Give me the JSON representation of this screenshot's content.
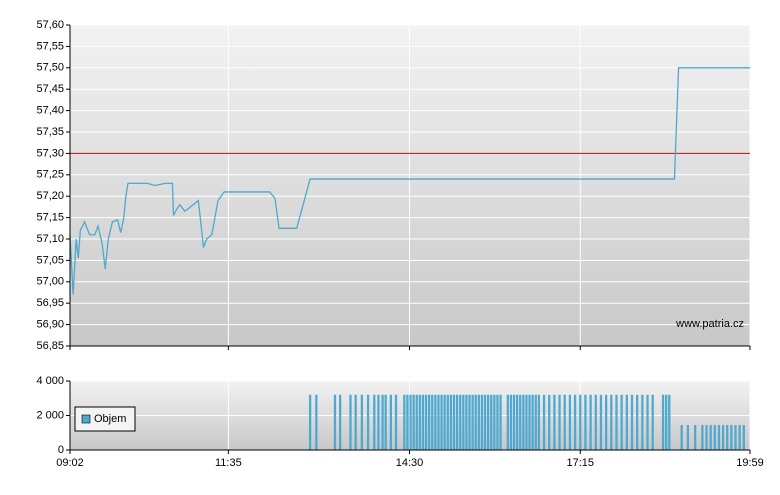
{
  "chart_data": [
    {
      "type": "line",
      "xlim": [
        "09:02",
        "19:59"
      ],
      "xticks": [
        "09:02",
        "11:35",
        "14:30",
        "17:15",
        "19:59"
      ],
      "ylim": [
        56.85,
        57.6
      ],
      "yticks": [
        {
          "value": 56.85,
          "label": "56,85"
        },
        {
          "value": 56.9,
          "label": "56,90"
        },
        {
          "value": 56.95,
          "label": "56,95"
        },
        {
          "value": 57,
          "label": "57,00"
        },
        {
          "value": 57.05,
          "label": "57,05"
        },
        {
          "value": 57.1,
          "label": "57,10"
        },
        {
          "value": 57.15,
          "label": "57,15"
        },
        {
          "value": 57.2,
          "label": "57,20"
        },
        {
          "value": 57.25,
          "label": "57,25"
        },
        {
          "value": 57.3,
          "label": "57,30"
        },
        {
          "value": 57.35,
          "label": "57,35"
        },
        {
          "value": 57.4,
          "label": "57,40"
        },
        {
          "value": 57.45,
          "label": "57,45"
        },
        {
          "value": 57.5,
          "label": "57,50"
        },
        {
          "value": 57.55,
          "label": "57,55"
        },
        {
          "value": 57.6,
          "label": "57,60"
        }
      ],
      "grid": true,
      "reference_line": {
        "value": 57.3,
        "color": "#cc0000"
      },
      "annotation": "www.patria.cz",
      "series": [
        {
          "color": "#4fa8cf",
          "x": [
            "09:02",
            "09:05",
            "09:08",
            "09:10",
            "09:12",
            "09:16",
            "09:21",
            "09:26",
            "09:29",
            "09:33",
            "09:36",
            "09:39",
            "09:43",
            "09:48",
            "09:51",
            "09:54",
            "09:56",
            "09:58",
            "10:17",
            "10:24",
            "10:34",
            "10:41",
            "10:42",
            "10:44",
            "10:48",
            "10:53",
            "11:01",
            "11:06",
            "11:11",
            "11:14",
            "11:19",
            "11:25",
            "11:31",
            "12:15",
            "12:20",
            "12:24",
            "12:41",
            "12:54",
            "18:46",
            "18:50",
            "19:59"
          ],
          "values": [
            57.11,
            56.97,
            57.1,
            57.055,
            57.12,
            57.14,
            57.11,
            57.11,
            57.13,
            57.09,
            57.03,
            57.1,
            57.14,
            57.145,
            57.115,
            57.15,
            57.2,
            57.23,
            57.23,
            57.225,
            57.23,
            57.23,
            57.155,
            57.165,
            57.18,
            57.165,
            57.18,
            57.19,
            57.08,
            57.1,
            57.11,
            57.19,
            57.21,
            57.21,
            57.195,
            57.125,
            57.125,
            57.24,
            57.24,
            57.5,
            57.5
          ]
        }
      ]
    },
    {
      "type": "bar",
      "xlim": [
        "09:02",
        "19:59"
      ],
      "xticks": [
        "09:02",
        "11:35",
        "14:30",
        "17:15",
        "19:59"
      ],
      "ylim": [
        0,
        4000
      ],
      "yticks": [
        0,
        {
          "value": 2000,
          "label": "2 000"
        },
        {
          "value": 4000,
          "label": "4 000"
        }
      ],
      "grid": true,
      "legend": "upper left",
      "series": [
        {
          "name": "Objem",
          "color": "#4fa8cf",
          "x": [
            "12:54",
            "13:00",
            "13:18",
            "13:23",
            "13:33",
            "13:38",
            "13:44",
            "13:50",
            "13:56",
            "14:00",
            "14:04",
            "14:07",
            "14:12",
            "14:17",
            "14:25",
            "14:28",
            "14:31",
            "14:34",
            "14:37",
            "14:40",
            "14:43",
            "14:46",
            "14:49",
            "14:52",
            "14:55",
            "14:58",
            "15:01",
            "15:04",
            "15:07",
            "15:10",
            "15:13",
            "15:16",
            "15:19",
            "15:22",
            "15:25",
            "15:28",
            "15:31",
            "15:34",
            "15:37",
            "15:40",
            "15:43",
            "15:46",
            "15:49",
            "15:52",
            "15:55",
            "15:58",
            "16:05",
            "16:08",
            "16:11",
            "16:14",
            "16:17",
            "16:20",
            "16:23",
            "16:26",
            "16:29",
            "16:32",
            "16:35",
            "16:40",
            "16:45",
            "16:50",
            "16:55",
            "17:00",
            "17:05",
            "17:10",
            "17:15",
            "17:20",
            "17:25",
            "17:30",
            "17:35",
            "17:40",
            "17:45",
            "17:50",
            "17:55",
            "18:00",
            "18:05",
            "18:10",
            "18:15",
            "18:20",
            "18:25",
            "18:35",
            "18:38",
            "18:41",
            "18:53",
            "18:59",
            "19:06",
            "19:13",
            "19:17",
            "19:21",
            "19:25",
            "19:29",
            "19:33",
            "19:37",
            "19:41",
            "19:45",
            "19:49",
            "19:53"
          ],
          "values": [
            3200,
            3200,
            3200,
            3200,
            3200,
            3200,
            3200,
            3200,
            3200,
            3200,
            3200,
            3200,
            3200,
            3200,
            3200,
            3200,
            3200,
            3200,
            3200,
            3200,
            3200,
            3200,
            3200,
            3200,
            3200,
            3200,
            3200,
            3200,
            3200,
            3200,
            3200,
            3200,
            3200,
            3200,
            3200,
            3200,
            3200,
            3200,
            3200,
            3200,
            3200,
            3200,
            3200,
            3200,
            3200,
            3200,
            3200,
            3200,
            3200,
            3200,
            3200,
            3200,
            3200,
            3200,
            3200,
            3200,
            3200,
            3200,
            3200,
            3200,
            3200,
            3200,
            3200,
            3200,
            3200,
            3200,
            3200,
            3200,
            3200,
            3200,
            3200,
            3200,
            3200,
            3200,
            3200,
            3200,
            3200,
            3200,
            3200,
            3200,
            3200,
            3200,
            1450,
            1450,
            1450,
            1450,
            1450,
            1450,
            1450,
            1450,
            1450,
            1450,
            1450,
            1450,
            1450,
            1450
          ]
        }
      ]
    }
  ]
}
